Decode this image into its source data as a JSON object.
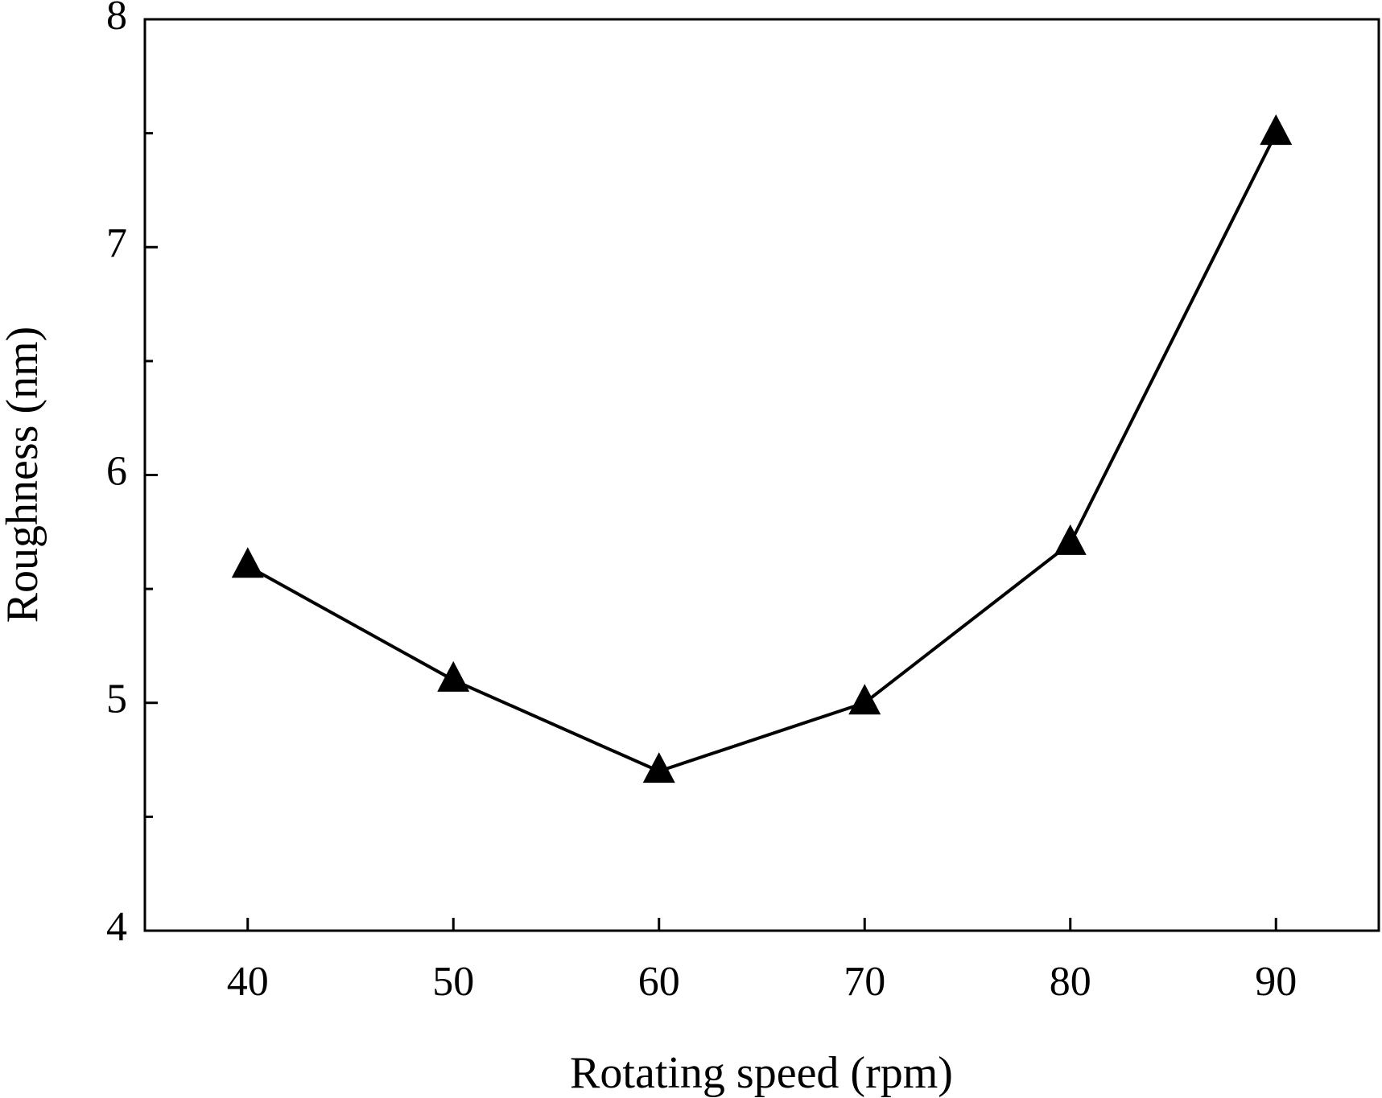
{
  "chart_data": {
    "type": "line",
    "title": "",
    "xlabel": "Rotating speed (rpm)",
    "ylabel": "Roughness (nm)",
    "xlim": [
      35,
      95
    ],
    "ylim": [
      4,
      8
    ],
    "x_ticks": [
      40,
      50,
      60,
      70,
      80,
      90
    ],
    "x_tick_labels": [
      "40",
      "50",
      "60",
      "70",
      "80",
      "90"
    ],
    "y_ticks": [
      4,
      5,
      6,
      7,
      8
    ],
    "y_tick_labels": [
      "4",
      "5",
      "6",
      "7",
      "8"
    ],
    "y_minor_ticks": [
      4.5,
      5.5,
      6.5,
      7.5
    ],
    "grid": false,
    "legend": "none",
    "marker": "filled-triangle",
    "line_color": "#000000",
    "series": [
      {
        "x": [
          40,
          50,
          60,
          70,
          80,
          90
        ],
        "y": [
          5.6,
          5.1,
          4.7,
          5.0,
          5.7,
          7.5
        ]
      }
    ]
  }
}
